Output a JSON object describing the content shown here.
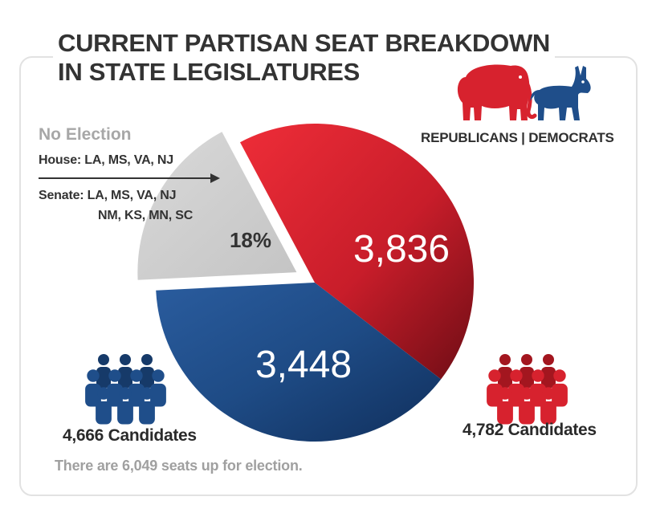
{
  "title": {
    "line1": "CURRENT PARTISAN SEAT BREAKDOWN",
    "line2": "IN STATE LEGISLATURES"
  },
  "legend": {
    "text": "REPUBLICANS | DEMOCRATS",
    "icons": [
      "elephant-icon",
      "donkey-icon"
    ]
  },
  "no_election": {
    "title": "No Election",
    "house": "House: LA, MS, VA, NJ",
    "senate_line1": "Senate: LA, MS, VA, NJ",
    "senate_line2": "NM, KS, MN, SC"
  },
  "democrats": {
    "candidates_label": "4,666 Candidates"
  },
  "republicans": {
    "candidates_label": "4,782 Candidates"
  },
  "footnote": "There are 6,049 seats up for election.",
  "colors": {
    "republican": "#d7222e",
    "republican_dark": "#7a0f18",
    "democrat": "#1f4e8a",
    "democrat_dark": "#0f2f5a",
    "no_election": "#d0d0d0"
  },
  "chart_data": {
    "type": "pie",
    "title": "CURRENT PARTISAN SEAT BREAKDOWN IN STATE LEGISLATURES",
    "slices": [
      {
        "name": "Republicans",
        "value": 3836,
        "label": "3,836"
      },
      {
        "name": "Democrats",
        "value": 3448,
        "label": "3,448"
      },
      {
        "name": "No Election",
        "value": 18,
        "label": "18%"
      }
    ]
  }
}
